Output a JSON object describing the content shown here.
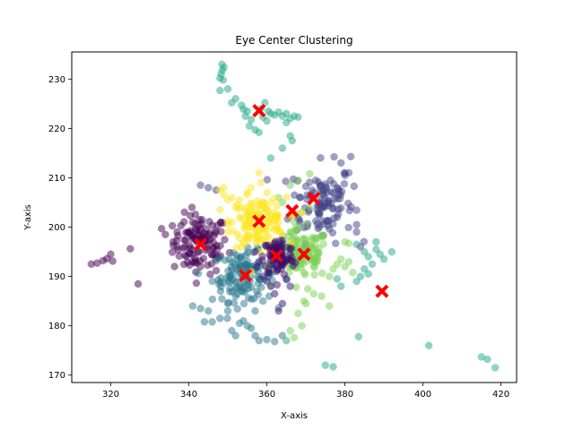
{
  "chart_data": {
    "type": "scatter",
    "title": "Eye Center Clustering",
    "xlabel": "X-axis",
    "ylabel": "Y-axis",
    "xlim": [
      310,
      424
    ],
    "ylim": [
      168.5,
      235.5
    ],
    "xticks": [
      320,
      340,
      360,
      380,
      400,
      420
    ],
    "yticks": [
      170,
      180,
      190,
      200,
      210,
      220,
      230
    ],
    "grid": false,
    "legend": "none",
    "point_alpha": 0.5,
    "clusters": [
      {
        "color": "#440154",
        "center": [
          343,
          196.5
        ],
        "spread": [
          3.5,
          3.0
        ],
        "count": 110,
        "extra": [
          [
            315,
            192.5
          ],
          [
            316.5,
            192.7
          ],
          [
            318,
            193.2
          ],
          [
            319,
            193.6
          ],
          [
            320,
            194.5
          ],
          [
            320.5,
            193.1
          ],
          [
            325,
            195.6
          ],
          [
            327,
            188.5
          ],
          [
            333,
            199.7
          ],
          [
            334,
            198.5
          ],
          [
            336,
            197
          ],
          [
            337,
            199
          ],
          [
            338,
            200.3
          ]
        ]
      },
      {
        "color": "#414487",
        "center": [
          374,
          205
        ],
        "spread": [
          4.0,
          4.0
        ],
        "count": 110,
        "extra": [
          [
            343,
            208.5
          ],
          [
            345,
            208
          ],
          [
            347,
            207.5
          ],
          [
            378,
            208
          ],
          [
            380,
            210.5
          ],
          [
            381.5,
            214.3
          ],
          [
            381,
            211
          ],
          [
            379,
            213
          ],
          [
            383,
            199
          ],
          [
            384,
            196
          ],
          [
            383,
            200.5
          ]
        ]
      },
      {
        "color": "#2a788e",
        "center": [
          354,
          190
        ],
        "spread": [
          4.0,
          2.5
        ],
        "count": 120,
        "extra": [
          [
            341,
            184
          ],
          [
            343,
            183.5
          ],
          [
            345,
            183
          ],
          [
            344,
            180.8
          ],
          [
            346,
            180.8
          ],
          [
            348,
            181.5
          ],
          [
            350,
            183
          ],
          [
            351,
            179
          ],
          [
            352,
            178
          ],
          [
            353,
            180.5
          ],
          [
            354,
            181
          ],
          [
            355,
            180
          ],
          [
            356,
            179.5
          ],
          [
            357,
            178
          ],
          [
            358,
            177
          ],
          [
            360,
            177.2
          ],
          [
            362,
            176.8
          ],
          [
            364,
            178
          ],
          [
            350,
            184.5
          ],
          [
            352,
            186
          ],
          [
            357,
            183
          ],
          [
            359,
            185
          ]
        ]
      },
      {
        "color": "#22a884",
        "center": [
          358,
          223.6
        ],
        "spread": [
          4.0,
          1.5
        ],
        "count": 0,
        "extra": [
          [
            348.5,
            233
          ],
          [
            349,
            232.4
          ],
          [
            348.6,
            231.8
          ],
          [
            348.3,
            231
          ],
          [
            348,
            230.2
          ],
          [
            348.8,
            229.8
          ],
          [
            348,
            227.7
          ],
          [
            350,
            228
          ],
          [
            352,
            226
          ],
          [
            351,
            225.2
          ],
          [
            353.5,
            224.7
          ],
          [
            354,
            223.9
          ],
          [
            355,
            223.5
          ],
          [
            354.5,
            222.5
          ],
          [
            356,
            221.8
          ],
          [
            357,
            219.7
          ],
          [
            358,
            219.2
          ],
          [
            359,
            222.3
          ],
          [
            360,
            221.5
          ],
          [
            361,
            223
          ],
          [
            362,
            222.7
          ],
          [
            363,
            223.3
          ],
          [
            364,
            222.5
          ],
          [
            365,
            223
          ],
          [
            366,
            222
          ],
          [
            367,
            222.5
          ],
          [
            368,
            222.3
          ],
          [
            365,
            221.2
          ],
          [
            366,
            218.5
          ],
          [
            366.5,
            217.5
          ],
          [
            358.5,
            224
          ],
          [
            359.5,
            225.2
          ],
          [
            360.4,
            223.5
          ],
          [
            355.5,
            220.5
          ],
          [
            364,
            216
          ],
          [
            361,
            214
          ],
          [
            383,
            196.5
          ],
          [
            385,
            195
          ],
          [
            386,
            194
          ],
          [
            387,
            192.5
          ],
          [
            388,
            195.5
          ],
          [
            389,
            194.5
          ],
          [
            390,
            193.5
          ],
          [
            388,
            197
          ],
          [
            392,
            195
          ],
          [
            385,
            191.5
          ],
          [
            384,
            190
          ],
          [
            383,
            189
          ],
          [
            379,
            188
          ],
          [
            378,
            189.5
          ],
          [
            386,
            190.5
          ],
          [
            401.5,
            176
          ],
          [
            415,
            173.7
          ],
          [
            416.5,
            173.2
          ],
          [
            418.5,
            171.5
          ],
          [
            375,
            172
          ],
          [
            377,
            171.7
          ],
          [
            383.5,
            177.8
          ],
          [
            365,
            177
          ]
        ]
      },
      {
        "color": "#7ad151",
        "center": [
          369,
          194.5
        ],
        "spread": [
          3.5,
          2.5
        ],
        "count": 110,
        "extra": [
          [
            364,
            196
          ],
          [
            366,
            199
          ],
          [
            367,
            201
          ],
          [
            369,
            203
          ],
          [
            371,
            204
          ],
          [
            371,
            210.8
          ],
          [
            366,
            208.5
          ],
          [
            368,
            209.5
          ],
          [
            363,
            206
          ],
          [
            364,
            205
          ],
          [
            376,
            190
          ],
          [
            377,
            191.5
          ],
          [
            378,
            192.5
          ],
          [
            379,
            193.5
          ],
          [
            380,
            192
          ],
          [
            381,
            193
          ],
          [
            382,
            190.8
          ],
          [
            380,
            197
          ],
          [
            381,
            196.7
          ],
          [
            370,
            184.5
          ],
          [
            368,
            182.5
          ],
          [
            369,
            180
          ],
          [
            366,
            179
          ],
          [
            367,
            177.6
          ],
          [
            367.5,
            187.8
          ],
          [
            370.5,
            187.5
          ],
          [
            372,
            186.5
          ],
          [
            374,
            186
          ],
          [
            376,
            184
          ],
          [
            369.5,
            185
          ]
        ]
      },
      {
        "color": "#fde725",
        "center": [
          358,
          201
        ],
        "spread": [
          3.5,
          2.5
        ],
        "count": 130,
        "extra": [
          [
            348,
            207.5
          ],
          [
            349,
            206.5
          ],
          [
            351,
            206
          ],
          [
            353,
            205.5
          ],
          [
            352,
            204
          ],
          [
            351,
            201
          ],
          [
            353,
            202
          ],
          [
            350,
            199
          ],
          [
            355,
            207
          ],
          [
            356,
            208
          ],
          [
            358,
            211
          ],
          [
            358.5,
            209
          ],
          [
            356,
            204
          ],
          [
            359,
            205
          ],
          [
            361,
            205
          ],
          [
            362,
            203
          ],
          [
            363,
            201
          ],
          [
            349,
            208
          ],
          [
            350,
            205.5
          ]
        ]
      },
      {
        "color": "#3b0f70",
        "center": [
          363,
          194
        ],
        "spread": [
          2.0,
          2.0
        ],
        "count": 90,
        "extra": [
          [
            357,
            195
          ],
          [
            358,
            193
          ],
          [
            357.5,
            192
          ],
          [
            359,
            190
          ],
          [
            360,
            189
          ],
          [
            361,
            188
          ],
          [
            362,
            186.5
          ],
          [
            366,
            188
          ],
          [
            365,
            189.5
          ],
          [
            364,
            184.5
          ],
          [
            363,
            183
          ]
        ]
      }
    ],
    "centroids": [
      [
        358,
        223.6
      ],
      [
        372,
        205.8
      ],
      [
        366.5,
        203.3
      ],
      [
        358,
        201.2
      ],
      [
        343,
        196.5
      ],
      [
        369.5,
        194.5
      ],
      [
        362.5,
        194.2
      ],
      [
        354.5,
        190.2
      ],
      [
        389.5,
        187
      ]
    ],
    "centroid_color": "#ff0000"
  }
}
